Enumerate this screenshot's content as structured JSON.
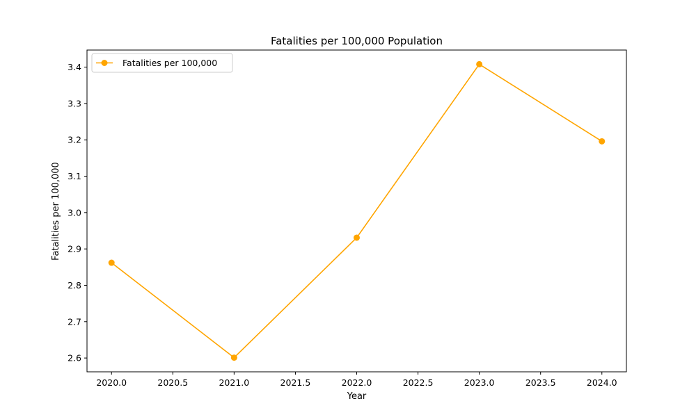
{
  "chart_data": {
    "type": "line",
    "title": "Fatalities per 100,000 Population",
    "xlabel": "Year",
    "ylabel": "Fatalities per 100,000",
    "x": [
      2020,
      2021,
      2022,
      2023,
      2024
    ],
    "series": [
      {
        "name": "Fatalities per 100,000",
        "values": [
          2.862,
          2.601,
          2.931,
          3.408,
          3.196
        ],
        "color": "#FFA500",
        "marker": "circle"
      }
    ],
    "xlim": [
      2019.8,
      2024.2
    ],
    "ylim": [
      2.562,
      3.447
    ],
    "xticks": [
      "2020.0",
      "2020.5",
      "2021.0",
      "2021.5",
      "2022.0",
      "2022.5",
      "2023.0",
      "2023.5",
      "2024.0"
    ],
    "yticks": [
      "2.6",
      "2.7",
      "2.8",
      "2.9",
      "3.0",
      "3.1",
      "3.2",
      "3.3",
      "3.4"
    ],
    "grid": false,
    "legend_position": "top-left"
  }
}
